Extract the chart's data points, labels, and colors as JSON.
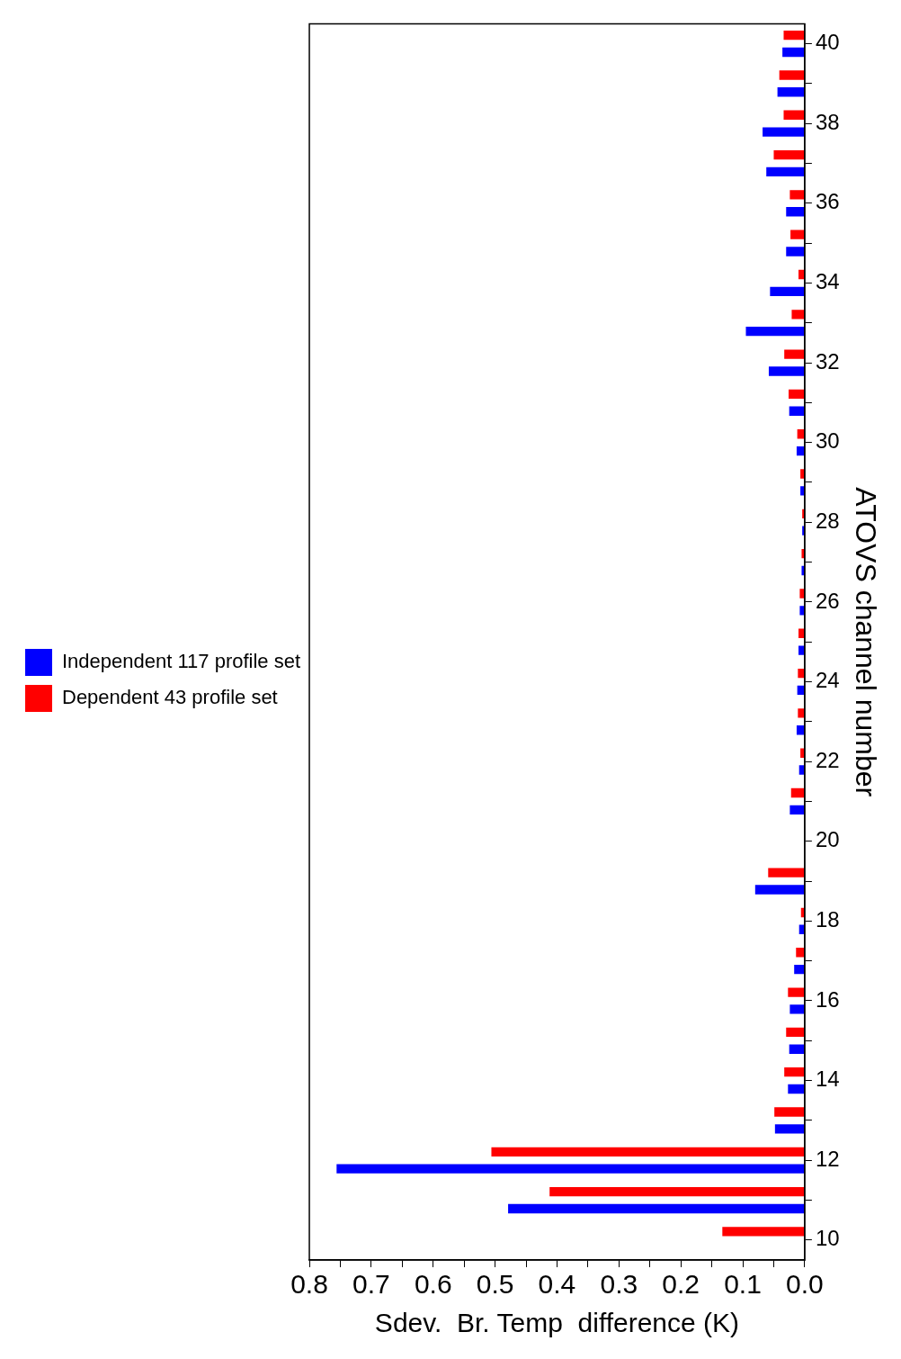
{
  "chart_data": {
    "type": "bar",
    "orientation": "horizontal",
    "xlabel": "Sdev.  Br. Temp  difference (K)",
    "ylabel": "ATOVS channel number",
    "categories": [
      "40",
      null,
      "38",
      null,
      "36",
      null,
      "34",
      null,
      "32",
      null,
      "30",
      null,
      "28",
      null,
      "26",
      null,
      "24",
      null,
      "22",
      null,
      "20",
      null,
      "18",
      null,
      "16",
      null,
      "14",
      null,
      "12",
      null,
      "10"
    ],
    "series": [
      {
        "name": "Independent 117 profile set",
        "color": "#0000ff",
        "values": [
          0.036,
          0.044,
          0.068,
          0.062,
          0.03,
          0.03,
          0.056,
          0.095,
          0.058,
          0.025,
          0.013,
          0.007,
          0.004,
          0.005,
          0.008,
          0.01,
          0.012,
          0.013,
          0.009,
          0.024,
          null,
          0.08,
          0.009,
          0.017,
          0.024,
          0.025,
          0.027,
          0.048,
          0.756,
          0.479,
          null
        ]
      },
      {
        "name": "Dependent 43 profile set",
        "color": "#ff0000",
        "values": [
          0.034,
          0.041,
          0.034,
          0.05,
          0.024,
          0.023,
          0.01,
          0.021,
          0.033,
          0.026,
          0.012,
          0.007,
          0.004,
          0.005,
          0.008,
          0.01,
          0.011,
          0.011,
          0.007,
          0.022,
          null,
          0.059,
          0.006,
          0.014,
          0.027,
          0.03,
          0.033,
          0.049,
          0.506,
          0.412,
          0.133
        ]
      }
    ],
    "xlim": [
      0.8,
      0
    ],
    "xticks": [
      {
        "value": 0,
        "label": "0.0"
      },
      {
        "value": 0.05,
        "label": null
      },
      0.1,
      {
        "value": 0.15,
        "label": null
      },
      0.2,
      {
        "value": 0.25,
        "label": null
      },
      0.3,
      {
        "value": 0.35,
        "label": null
      },
      0.4,
      {
        "value": 0.45,
        "label": null
      },
      0.5,
      {
        "value": 0.55,
        "label": null
      },
      0.6,
      {
        "value": 0.65,
        "label": null
      },
      0.7,
      {
        "value": 0.75,
        "label": null
      },
      0.8
    ],
    "grid": false,
    "legend": "left"
  }
}
